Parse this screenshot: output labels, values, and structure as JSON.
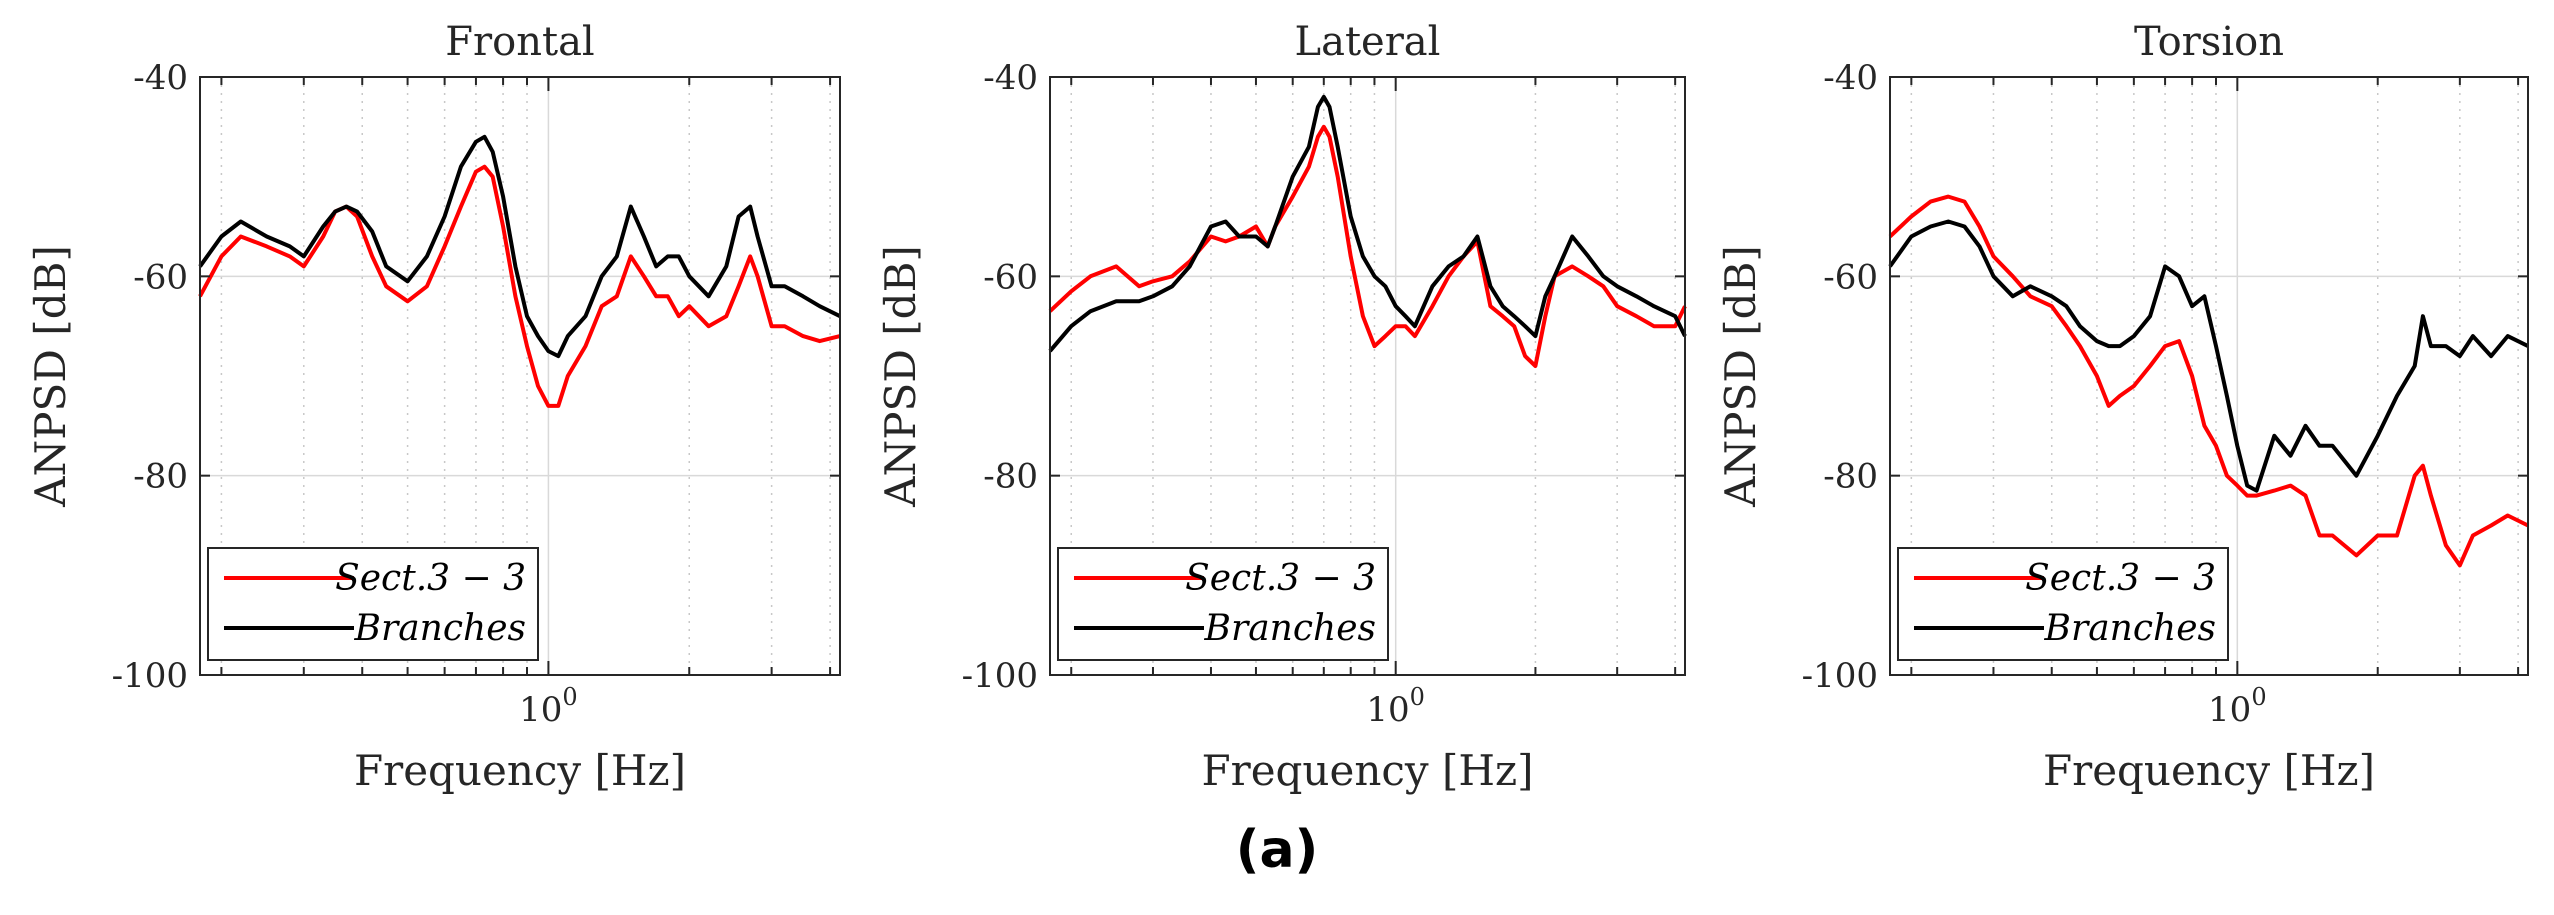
{
  "caption": "(a)",
  "colors": {
    "sect": "#ff0000",
    "branches": "#000000",
    "grid": "#d9d9d9",
    "axis": "#262626"
  },
  "chart_data": [
    {
      "type": "line",
      "title": "Frontal",
      "xlabel": "Frequency [Hz]",
      "ylabel": "ANPSD [dB]",
      "xscale": "log",
      "xlim": [
        0.18,
        4.2
      ],
      "ylim": [
        -100,
        -40
      ],
      "yticks": [
        -40,
        -60,
        -80,
        -100
      ],
      "ytick_labels": [
        "-40",
        "-60",
        "-80",
        "-100"
      ],
      "xtick_labels": [
        {
          "base": "10",
          "exp": "0",
          "value": 1
        }
      ],
      "grid": true,
      "legend": "bottom-left",
      "series": [
        {
          "name": "Sect.3 − 3",
          "color": "#ff0000",
          "x": [
            0.18,
            0.2,
            0.22,
            0.25,
            0.28,
            0.3,
            0.33,
            0.35,
            0.37,
            0.39,
            0.42,
            0.45,
            0.5,
            0.55,
            0.6,
            0.65,
            0.7,
            0.73,
            0.76,
            0.8,
            0.85,
            0.9,
            0.95,
            1.0,
            1.05,
            1.1,
            1.2,
            1.3,
            1.4,
            1.5,
            1.6,
            1.7,
            1.8,
            1.9,
            2.0,
            2.2,
            2.4,
            2.55,
            2.7,
            2.8,
            3.0,
            3.2,
            3.5,
            3.8,
            4.2
          ],
          "y": [
            -62,
            -58,
            -56,
            -57,
            -58,
            -59,
            -56,
            -53.5,
            -53,
            -54,
            -58,
            -61,
            -62.5,
            -61,
            -57,
            -53,
            -49.5,
            -49,
            -50,
            -55,
            -62,
            -67,
            -71,
            -73,
            -73,
            -70,
            -67,
            -63,
            -62,
            -58,
            -60,
            -62,
            -62,
            -64,
            -63,
            -65,
            -64,
            -61,
            -58,
            -60,
            -65,
            -65,
            -66,
            -66.5,
            -66
          ]
        },
        {
          "name": "Branches",
          "color": "#000000",
          "x": [
            0.18,
            0.2,
            0.22,
            0.25,
            0.28,
            0.3,
            0.33,
            0.35,
            0.37,
            0.39,
            0.42,
            0.45,
            0.5,
            0.55,
            0.6,
            0.65,
            0.7,
            0.73,
            0.76,
            0.8,
            0.85,
            0.9,
            0.95,
            1.0,
            1.05,
            1.1,
            1.2,
            1.3,
            1.4,
            1.5,
            1.6,
            1.7,
            1.8,
            1.9,
            2.0,
            2.2,
            2.4,
            2.55,
            2.7,
            2.8,
            3.0,
            3.2,
            3.5,
            3.8,
            4.2
          ],
          "y": [
            -59,
            -56,
            -54.5,
            -56,
            -57,
            -58,
            -55,
            -53.5,
            -53,
            -53.5,
            -55.5,
            -59,
            -60.5,
            -58,
            -54,
            -49,
            -46.5,
            -46,
            -47.5,
            -52,
            -59,
            -64,
            -66,
            -67.5,
            -68,
            -66,
            -64,
            -60,
            -58,
            -53,
            -56,
            -59,
            -58,
            -58,
            -60,
            -62,
            -59,
            -54,
            -53,
            -56,
            -61,
            -61,
            -62,
            -63,
            -64
          ]
        }
      ]
    },
    {
      "type": "line",
      "title": "Lateral",
      "xlabel": "Frequency [Hz]",
      "ylabel": "ANPSD [dB]",
      "xscale": "log",
      "xlim": [
        0.18,
        4.2
      ],
      "ylim": [
        -100,
        -40
      ],
      "yticks": [
        -40,
        -60,
        -80,
        -100
      ],
      "ytick_labels": [
        "-40",
        "-60",
        "-80",
        "-100"
      ],
      "xtick_labels": [
        {
          "base": "10",
          "exp": "0",
          "value": 1
        }
      ],
      "grid": true,
      "legend": "bottom-left",
      "series": [
        {
          "name": "Sect.3 − 3",
          "color": "#ff0000",
          "x": [
            0.18,
            0.2,
            0.22,
            0.25,
            0.28,
            0.3,
            0.33,
            0.36,
            0.4,
            0.43,
            0.46,
            0.5,
            0.53,
            0.55,
            0.6,
            0.65,
            0.68,
            0.7,
            0.72,
            0.75,
            0.8,
            0.85,
            0.9,
            0.95,
            1.0,
            1.05,
            1.1,
            1.2,
            1.3,
            1.4,
            1.5,
            1.6,
            1.7,
            1.8,
            1.9,
            2.0,
            2.1,
            2.2,
            2.4,
            2.6,
            2.8,
            3.0,
            3.3,
            3.6,
            4.0,
            4.2
          ],
          "y": [
            -63.5,
            -61.5,
            -60,
            -59,
            -61,
            -60.5,
            -60,
            -58.5,
            -56,
            -56.5,
            -56,
            -55,
            -57,
            -55,
            -52,
            -49,
            -46,
            -45,
            -46,
            -50,
            -58,
            -64,
            -67,
            -66,
            -65,
            -65,
            -66,
            -63,
            -60,
            -58,
            -56.5,
            -63,
            -64,
            -65,
            -68,
            -69,
            -64,
            -60,
            -59,
            -60,
            -61,
            -63,
            -64,
            -65,
            -65,
            -63
          ]
        },
        {
          "name": "Branches",
          "color": "#000000",
          "x": [
            0.18,
            0.2,
            0.22,
            0.25,
            0.28,
            0.3,
            0.33,
            0.36,
            0.4,
            0.43,
            0.46,
            0.5,
            0.53,
            0.55,
            0.6,
            0.65,
            0.68,
            0.7,
            0.72,
            0.75,
            0.8,
            0.85,
            0.9,
            0.95,
            1.0,
            1.05,
            1.1,
            1.2,
            1.3,
            1.4,
            1.5,
            1.6,
            1.7,
            1.8,
            1.9,
            2.0,
            2.1,
            2.2,
            2.4,
            2.6,
            2.8,
            3.0,
            3.3,
            3.6,
            4.0,
            4.2
          ],
          "y": [
            -67.5,
            -65,
            -63.5,
            -62.5,
            -62.5,
            -62,
            -61,
            -59,
            -55,
            -54.5,
            -56,
            -56,
            -57,
            -55,
            -50,
            -47,
            -43,
            -42,
            -43,
            -47,
            -54,
            -58,
            -60,
            -61,
            -63,
            -64,
            -65,
            -61,
            -59,
            -58,
            -56,
            -61,
            -63,
            -64,
            -65,
            -66,
            -62,
            -60,
            -56,
            -58,
            -60,
            -61,
            -62,
            -63,
            -64,
            -66
          ]
        }
      ]
    },
    {
      "type": "line",
      "title": "Torsion",
      "xlabel": "Frequency [Hz]",
      "ylabel": "ANPSD [dB]",
      "xscale": "log",
      "xlim": [
        0.18,
        4.2
      ],
      "ylim": [
        -100,
        -40
      ],
      "yticks": [
        -40,
        -60,
        -80,
        -100
      ],
      "ytick_labels": [
        "-40",
        "-60",
        "-80",
        "-100"
      ],
      "xtick_labels": [
        {
          "base": "10",
          "exp": "0",
          "value": 1
        }
      ],
      "grid": true,
      "legend": "bottom-left",
      "series": [
        {
          "name": "Sect.3 − 3",
          "color": "#ff0000",
          "x": [
            0.18,
            0.2,
            0.22,
            0.24,
            0.26,
            0.28,
            0.3,
            0.33,
            0.36,
            0.4,
            0.43,
            0.46,
            0.5,
            0.53,
            0.56,
            0.6,
            0.65,
            0.7,
            0.75,
            0.8,
            0.85,
            0.9,
            0.95,
            1.0,
            1.05,
            1.1,
            1.2,
            1.3,
            1.4,
            1.5,
            1.6,
            1.8,
            2.0,
            2.2,
            2.4,
            2.5,
            2.6,
            2.8,
            3.0,
            3.2,
            3.5,
            3.8,
            4.2
          ],
          "y": [
            -56,
            -54,
            -52.5,
            -52,
            -52.5,
            -55,
            -58,
            -60,
            -62,
            -63,
            -65,
            -67,
            -70,
            -73,
            -72,
            -71,
            -69,
            -67,
            -66.5,
            -70,
            -75,
            -77,
            -80,
            -81,
            -82,
            -82,
            -81.5,
            -81,
            -82,
            -86,
            -86,
            -88,
            -86,
            -86,
            -80,
            -79,
            -82,
            -87,
            -89,
            -86,
            -85,
            -84,
            -85
          ]
        },
        {
          "name": "Branches",
          "color": "#000000",
          "x": [
            0.18,
            0.2,
            0.22,
            0.24,
            0.26,
            0.28,
            0.3,
            0.33,
            0.36,
            0.4,
            0.43,
            0.46,
            0.5,
            0.53,
            0.56,
            0.6,
            0.65,
            0.7,
            0.75,
            0.8,
            0.85,
            0.9,
            0.95,
            1.0,
            1.05,
            1.1,
            1.2,
            1.3,
            1.4,
            1.5,
            1.6,
            1.8,
            2.0,
            2.2,
            2.4,
            2.5,
            2.6,
            2.8,
            3.0,
            3.2,
            3.5,
            3.8,
            4.2
          ],
          "y": [
            -59,
            -56,
            -55,
            -54.5,
            -55,
            -57,
            -60,
            -62,
            -61,
            -62,
            -63,
            -65,
            -66.5,
            -67,
            -67,
            -66,
            -64,
            -59,
            -60,
            -63,
            -62,
            -67,
            -72,
            -77,
            -81,
            -81.5,
            -76,
            -78,
            -75,
            -77,
            -77,
            -80,
            -76,
            -72,
            -69,
            -64,
            -67,
            -67,
            -68,
            -66,
            -68,
            -66,
            -67
          ]
        }
      ]
    }
  ]
}
